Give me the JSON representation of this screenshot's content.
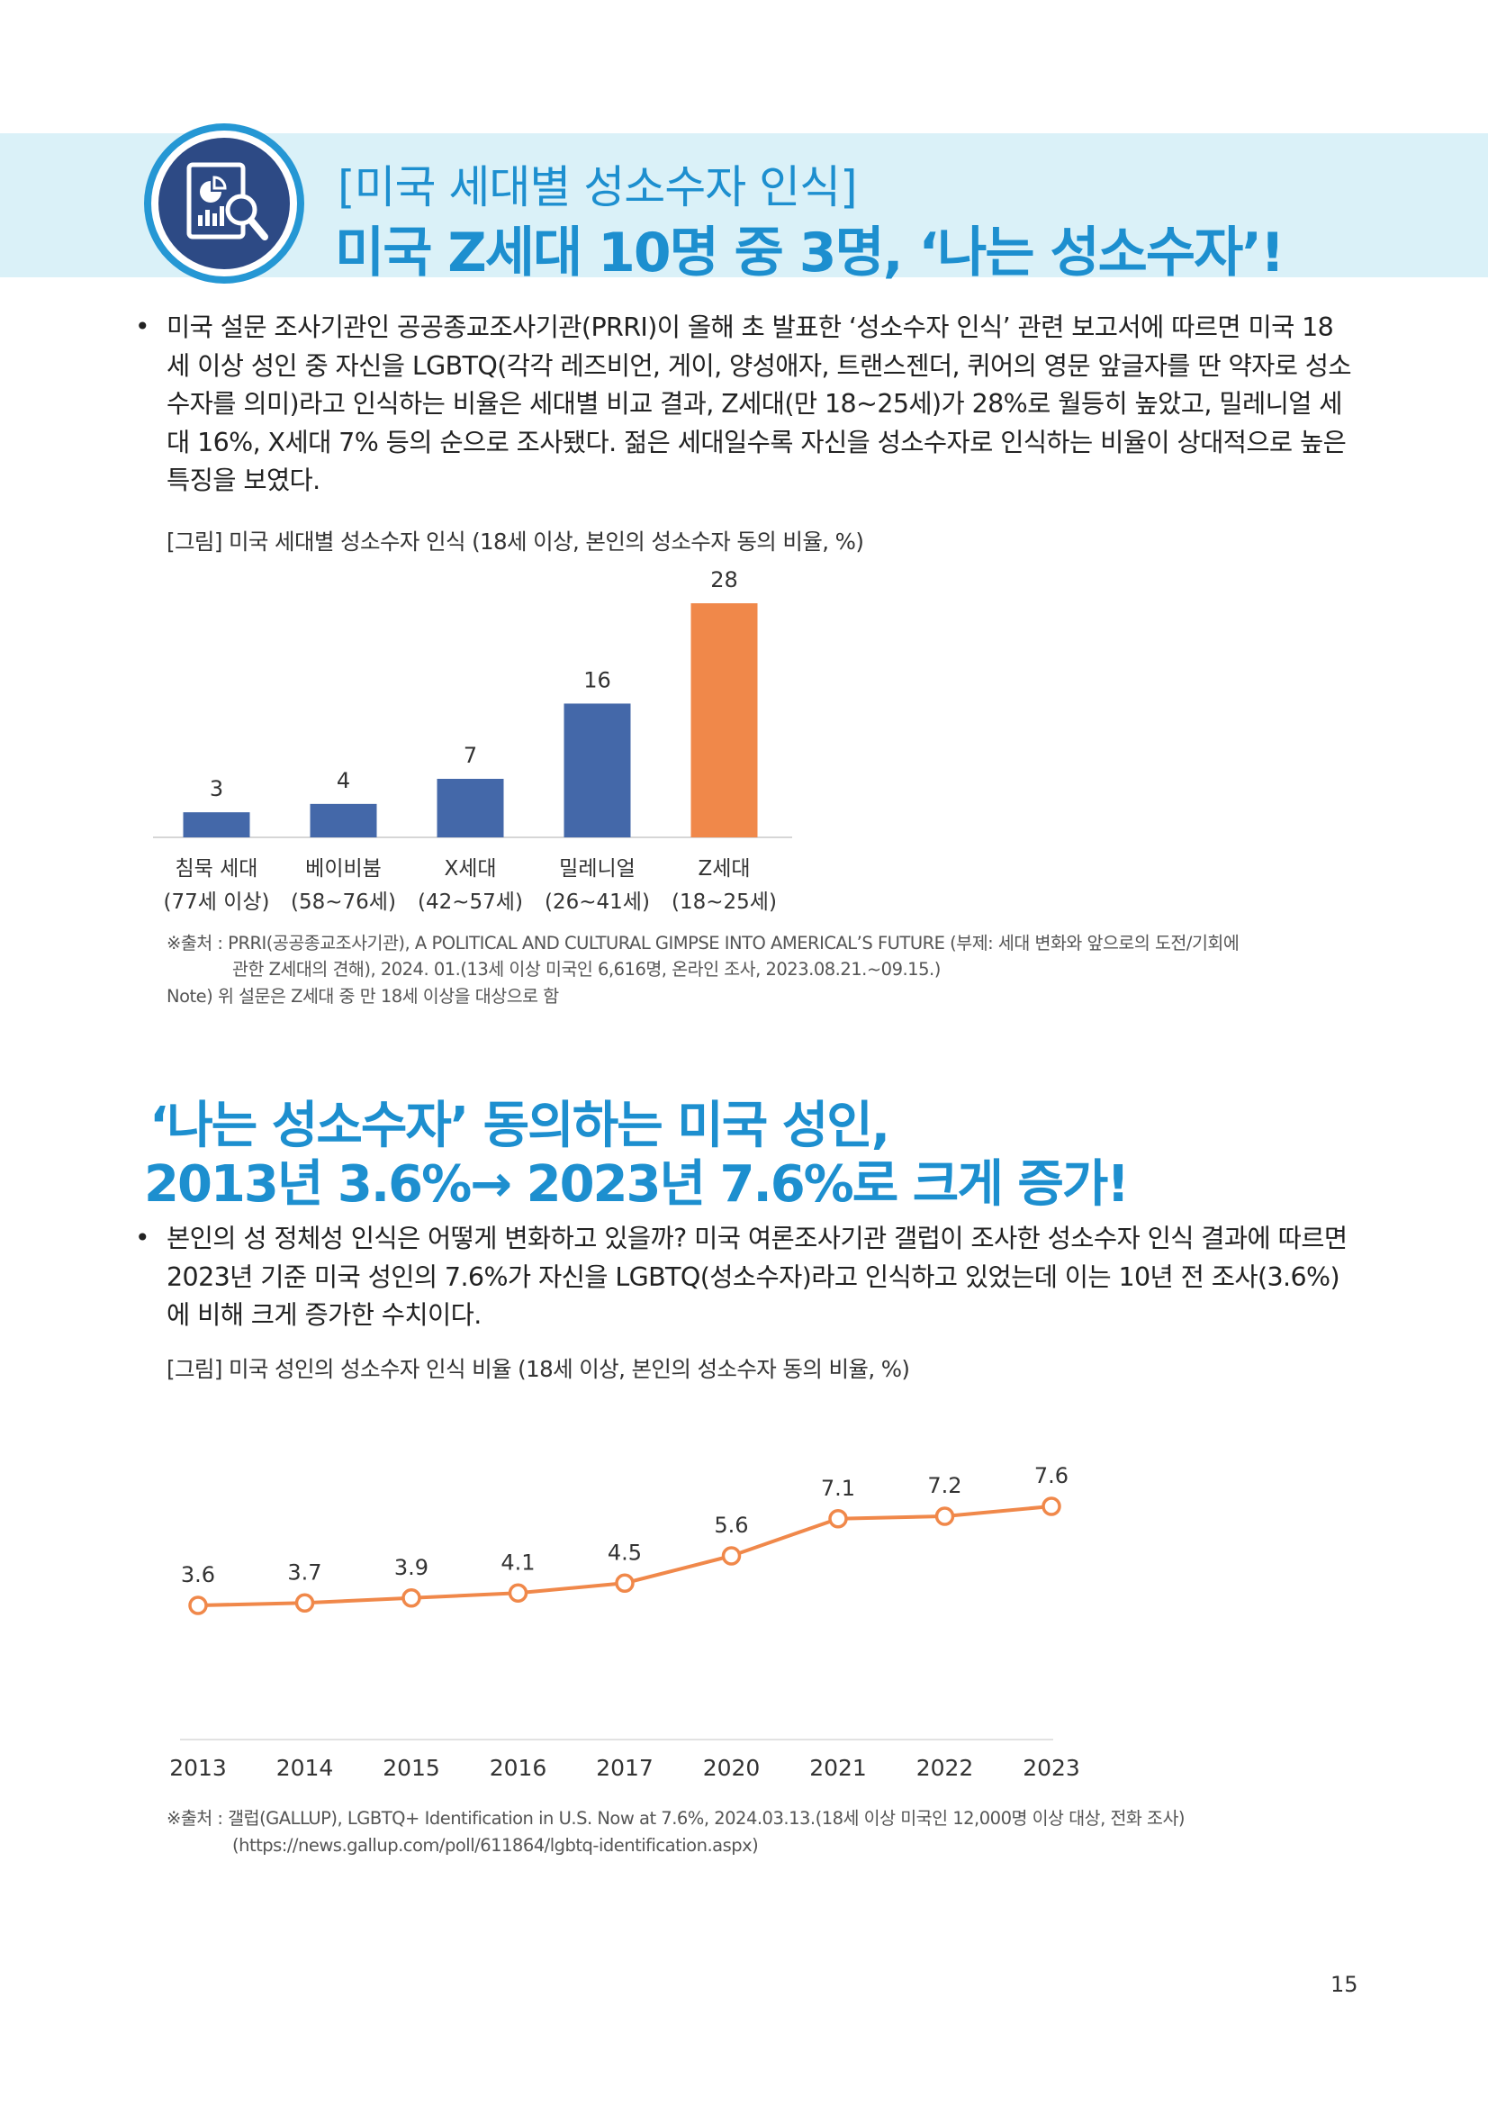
{
  "header": {
    "subtitle": "[미국 세대별 성소수자 인식]",
    "title": "미국 Z세대 10명 중 3명, ‘나는 성소수자’!"
  },
  "section1": {
    "bullet": "•",
    "paragraph": "미국 설문 조사기관인 공공종교조사기관(PRRI)이 올해 초 발표한 ‘성소수자 인식’ 관련 보고서에 따르면 미국 18세 이상 성인 중 자신을 LGBTQ(각각 레즈비언, 게이, 양성애자, 트랜스젠더, 퀴어의 영문 앞글자를 딴 약자로 성소수자를 의미)라고 인식하는 비율은 세대별 비교 결과, Z세대(만 18~25세)가 28%로 월등히 높았고, 밀레니얼 세대 16%, X세대 7% 등의 순으로 조사됐다. 젊은 세대일수록 자신을 성소수자로 인식하는 비율이 상대적으로 높은 특징을 보였다.",
    "figure_caption": "[그림] 미국 세대별 성소수자 인식 (18세 이상, 본인의 성소수자 동의 비율, %)",
    "source_line1": "※출처 : PRRI(공공종교조사기관), A POLITICAL AND CULTURAL GIMPSE INTO AMERICAL’S FUTURE (부제: 세대 변화와 앞으로의 도전/기회에",
    "source_line2": "관한 Z세대의 견해), 2024. 01.(13세 이상 미국인 6,616명, 온라인 조사, 2023.08.21.~09.15.)",
    "note": "Note) 위 설문은 Z세대 중 만 18세 이상을 대상으로 함"
  },
  "section2": {
    "heading_line1": "‘나는 성소수자’ 동의하는 미국 성인,",
    "heading_line2": "2013년 3.6%→ 2023년 7.6%로 크게 증가!",
    "bullet": "•",
    "paragraph": "본인의 성 정체성 인식은 어떻게 변화하고 있을까? 미국 여론조사기관 갤럽이 조사한 성소수자 인식 결과에 따르면 2023년 기준 미국 성인의 7.6%가 자신을 LGBTQ(성소수자)라고 인식하고 있었는데 이는 10년 전 조사(3.6%)에 비해 크게 증가한 수치이다.",
    "figure_caption": "[그림] 미국 성인의 성소수자 인식 비율 (18세 이상, 본인의 성소수자 동의 비율, %)",
    "source_line1": "※출처 : 갤럽(GALLUP), LGBTQ+ Identification in U.S. Now at 7.6%, 2024.03.13.(18세 이상 미국인 12,000명 이상 대상, 전화 조사)",
    "source_line2": "(https://news.gallup.com/poll/611864/lgbtq-identification.aspx)"
  },
  "page_number": "15",
  "colors": {
    "accent": "#1d8fcf",
    "banner": "#daf1f8",
    "bar_default": "#4468a9",
    "bar_highlight": "#f0884a",
    "line": "#f0884a"
  },
  "icons": {
    "badge": "report-magnifier-icon"
  },
  "chart_data": [
    {
      "type": "bar",
      "categories": [
        [
          "침묵 세대",
          "(77세 이상)"
        ],
        [
          "베이비붐",
          "(58~76세)"
        ],
        [
          "X세대",
          "(42~57세)"
        ],
        [
          "밀레니얼",
          "(26~41세)"
        ],
        [
          "Z세대",
          "(18~25세)"
        ]
      ],
      "values": [
        3,
        4,
        7,
        16,
        28
      ],
      "highlight_index": 4,
      "ylim": [
        0,
        30
      ],
      "grid": false,
      "title": "",
      "xlabel": "",
      "ylabel": ""
    },
    {
      "type": "line",
      "x": [
        "2013",
        "2014",
        "2015",
        "2016",
        "2017",
        "2020",
        "2021",
        "2022",
        "2023"
      ],
      "values": [
        3.6,
        3.7,
        3.9,
        4.1,
        4.5,
        5.6,
        7.1,
        7.2,
        7.6
      ],
      "ylim": [
        0,
        8
      ],
      "grid": false,
      "title": "",
      "xlabel": "",
      "ylabel": ""
    }
  ]
}
